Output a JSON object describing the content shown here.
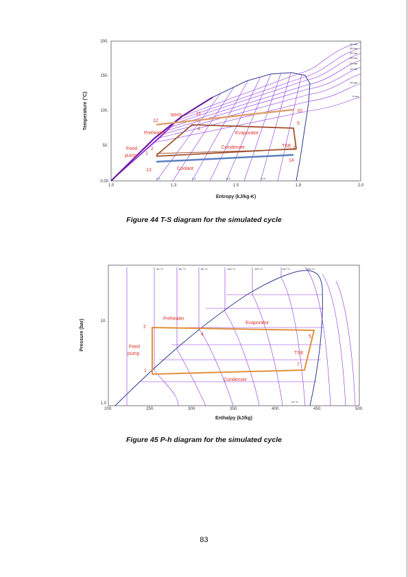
{
  "ts_diagram": {
    "x_axis_label": "Entropy (kJ/kg-K)",
    "y_axis_label": "Temperature (°C)",
    "x_ticks": [
      "1.0",
      "1.3",
      "1.5",
      "1.8",
      "2.0"
    ],
    "y_ticks": [
      "0.00",
      "50.",
      "100.",
      "150.",
      "200."
    ],
    "quality_labels": [
      "0.2",
      "0.4",
      "0.6",
      "0.8"
    ],
    "pressure_labels": [
      "40 bar",
      "35 bar",
      "30 bar",
      "25 bar",
      "20 bar",
      "15 bar",
      "10 bar",
      "5 bar"
    ],
    "annotations": [
      "WHS",
      "11",
      "12",
      "10",
      "5",
      "4",
      "Preheater",
      "Evaporator",
      "Feed",
      "pump",
      "2",
      "1",
      "Condenser",
      "TSE",
      "7",
      "14",
      "13",
      "Coolant"
    ],
    "caption": "Figure 44 T-S diagram for the simulated cycle"
  },
  "ph_diagram": {
    "x_axis_label": "Enthalpy (kJ/kg)",
    "y_axis_label": "Pressure (bar)",
    "x_ticks": [
      "200.",
      "250.",
      "300.",
      "350.",
      "400.",
      "450.",
      "500."
    ],
    "y_ticks": [
      "1.0",
      "10."
    ],
    "temperature_labels": [
      "40 °C",
      "60 °C",
      "80 °C",
      "100 °C",
      "120 °C",
      "140 °C",
      "160 °C",
      "20 °C"
    ],
    "annotations": [
      "Preheater",
      "2",
      "4",
      "Evaporator",
      "5",
      "Feed",
      "pump",
      "TSE",
      "7",
      "1",
      "Condenser"
    ],
    "caption": "Figure 45 P-h diagram for the simulated cycle"
  },
  "page_number": "83"
}
